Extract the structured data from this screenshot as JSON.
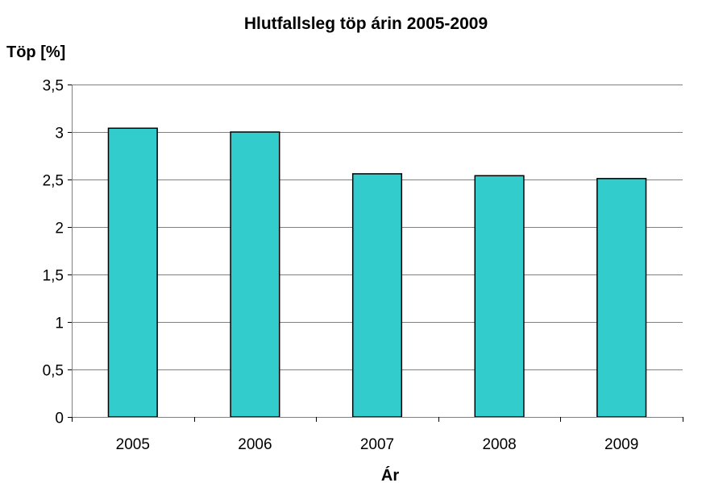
{
  "chart_data": {
    "type": "bar",
    "title": "Hlutfallsleg töp árin 2005-2009",
    "xlabel": "Ár",
    "ylabel": "Töp [%]",
    "categories": [
      "2005",
      "2006",
      "2007",
      "2008",
      "2009"
    ],
    "values": [
      3.04,
      3.0,
      2.56,
      2.54,
      2.51
    ],
    "ylim": [
      0,
      3.5
    ],
    "yticks": [
      0,
      0.5,
      1,
      1.5,
      2,
      2.5,
      3,
      3.5
    ],
    "ytick_labels": [
      "0",
      "0,5",
      "1",
      "1,5",
      "2",
      "2,5",
      "3",
      "3,5"
    ],
    "grid": true,
    "legend": "none",
    "bar_color": "#33CCCC"
  }
}
